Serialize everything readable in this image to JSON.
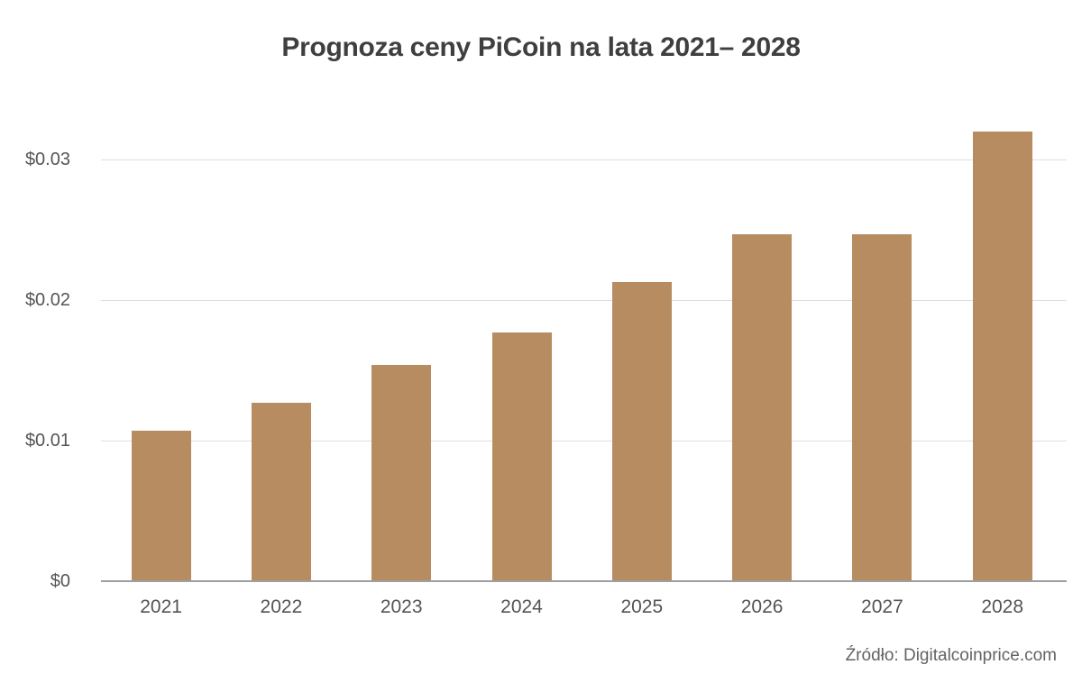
{
  "chart_data": {
    "type": "bar",
    "title": "Prognoza ceny PiCoin na lata 2021– 2028",
    "categories": [
      "2021",
      "2022",
      "2023",
      "2024",
      "2025",
      "2026",
      "2027",
      "2028"
    ],
    "values": [
      0.0107,
      0.0127,
      0.0154,
      0.0177,
      0.0213,
      0.0247,
      0.0247,
      0.032
    ],
    "xlabel": "",
    "ylabel": "",
    "ylim": [
      0,
      0.033
    ],
    "yticks": [
      {
        "value": 0,
        "label": "$0"
      },
      {
        "value": 0.01,
        "label": "$0.01"
      },
      {
        "value": 0.02,
        "label": "$0.02"
      },
      {
        "value": 0.03,
        "label": "$0.03"
      }
    ],
    "grid": true,
    "legend": "none",
    "bar_color": "#b88c61",
    "source": "Źródło: Digitalcoinprice.com"
  },
  "colors": {
    "bar": "#b88c61",
    "title_text": "#3f3f3f",
    "tick_text": "#555555",
    "gridline": "#dedede",
    "axis_line": "#9e9e9e",
    "background": "#ffffff"
  }
}
